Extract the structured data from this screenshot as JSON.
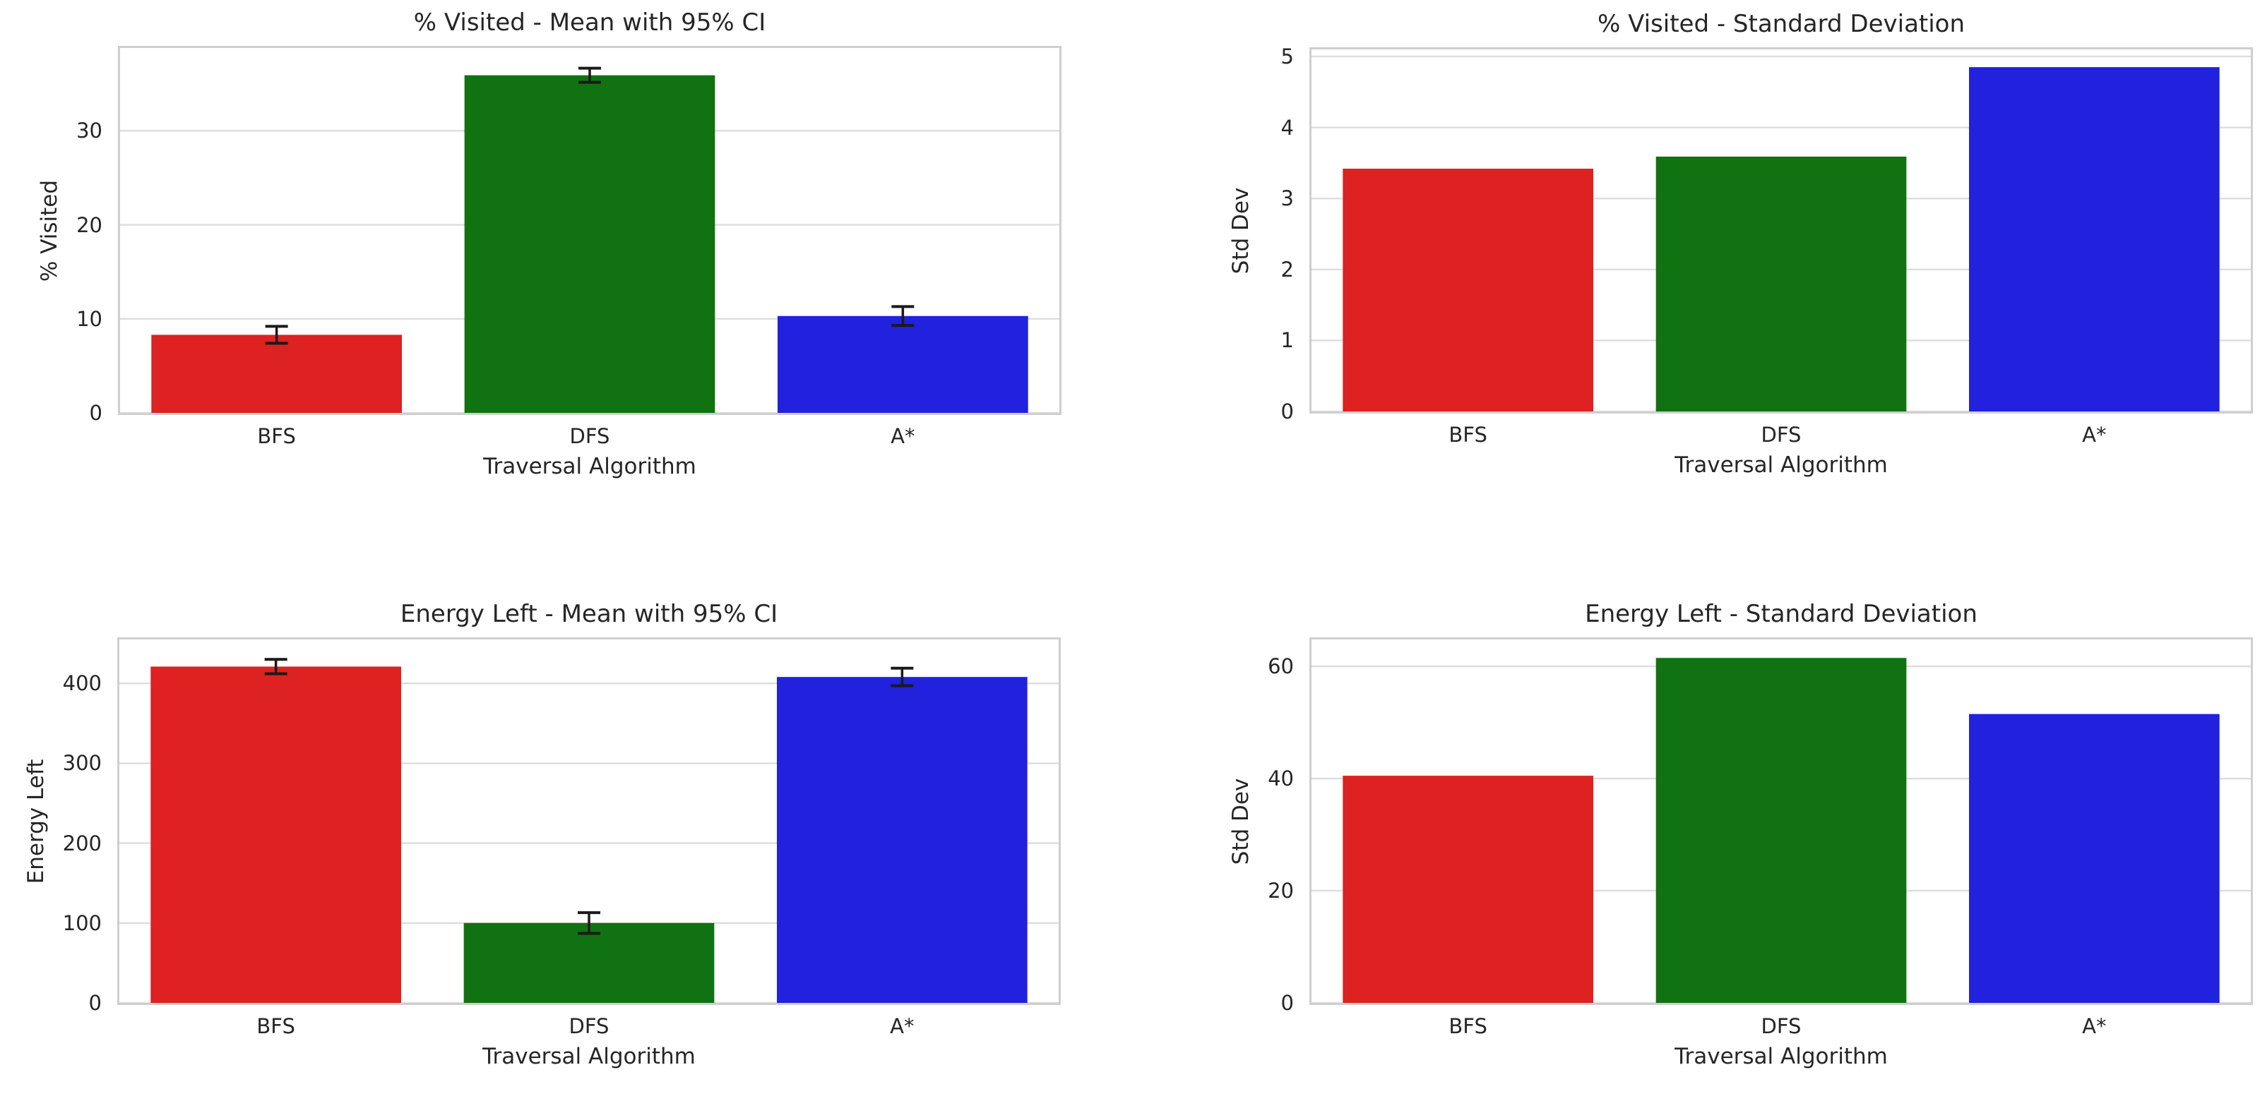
{
  "figure": {
    "background": "#ffffff",
    "text_color": "#262626",
    "grid_color": "#dedede",
    "spine_color": "#cfcfcf",
    "errorbar_color": "#1a1a1a",
    "palette": {
      "red": "#DE2121",
      "green": "#117211",
      "blue": "#2121DE"
    }
  },
  "chart_data": [
    {
      "type": "bar",
      "title": "% Visited - Mean with 95% CI",
      "xlabel": "Traversal Algorithm",
      "ylabel": "% Visited",
      "categories": [
        "BFS",
        "DFS",
        "A*"
      ],
      "values": [
        8.3,
        35.9,
        10.3
      ],
      "ci95": [
        0.9,
        0.75,
        1.0
      ],
      "bar_colors": [
        "#DE2121",
        "#117211",
        "#2121DE"
      ],
      "yticks": [
        0,
        10,
        20,
        30
      ],
      "ylim": [
        0,
        38.8
      ],
      "grid": "horizontal",
      "legend": "none",
      "bar_width_fraction": 0.8
    },
    {
      "type": "bar",
      "title": "% Visited - Standard Deviation",
      "xlabel": "Traversal Algorithm",
      "ylabel": "Std Dev",
      "categories": [
        "BFS",
        "DFS",
        "A*"
      ],
      "values": [
        3.42,
        3.59,
        4.85
      ],
      "ci95": null,
      "bar_colors": [
        "#DE2121",
        "#117211",
        "#2121DE"
      ],
      "yticks": [
        0,
        1,
        2,
        3,
        4,
        5
      ],
      "ylim": [
        0,
        5.1
      ],
      "grid": "horizontal",
      "legend": "none",
      "bar_width_fraction": 0.8
    },
    {
      "type": "bar",
      "title": "Energy Left - Mean with 95% CI",
      "xlabel": "Traversal Algorithm",
      "ylabel": "Energy Left",
      "categories": [
        "BFS",
        "DFS",
        "A*"
      ],
      "values": [
        421,
        100,
        408
      ],
      "ci95": [
        9,
        13,
        11
      ],
      "bar_colors": [
        "#DE2121",
        "#117211",
        "#2121DE"
      ],
      "yticks": [
        0,
        100,
        200,
        300,
        400
      ],
      "ylim": [
        0,
        455
      ],
      "grid": "horizontal",
      "legend": "none",
      "bar_width_fraction": 0.8
    },
    {
      "type": "bar",
      "title": "Energy Left - Standard Deviation",
      "xlabel": "Traversal Algorithm",
      "ylabel": "Std Dev",
      "categories": [
        "BFS",
        "DFS",
        "A*"
      ],
      "values": [
        40.5,
        61.5,
        51.5
      ],
      "ci95": null,
      "bar_colors": [
        "#DE2121",
        "#117211",
        "#2121DE"
      ],
      "yticks": [
        0,
        20,
        40,
        60
      ],
      "ylim": [
        0,
        64.8
      ],
      "grid": "horizontal",
      "legend": "none",
      "bar_width_fraction": 0.8
    }
  ]
}
